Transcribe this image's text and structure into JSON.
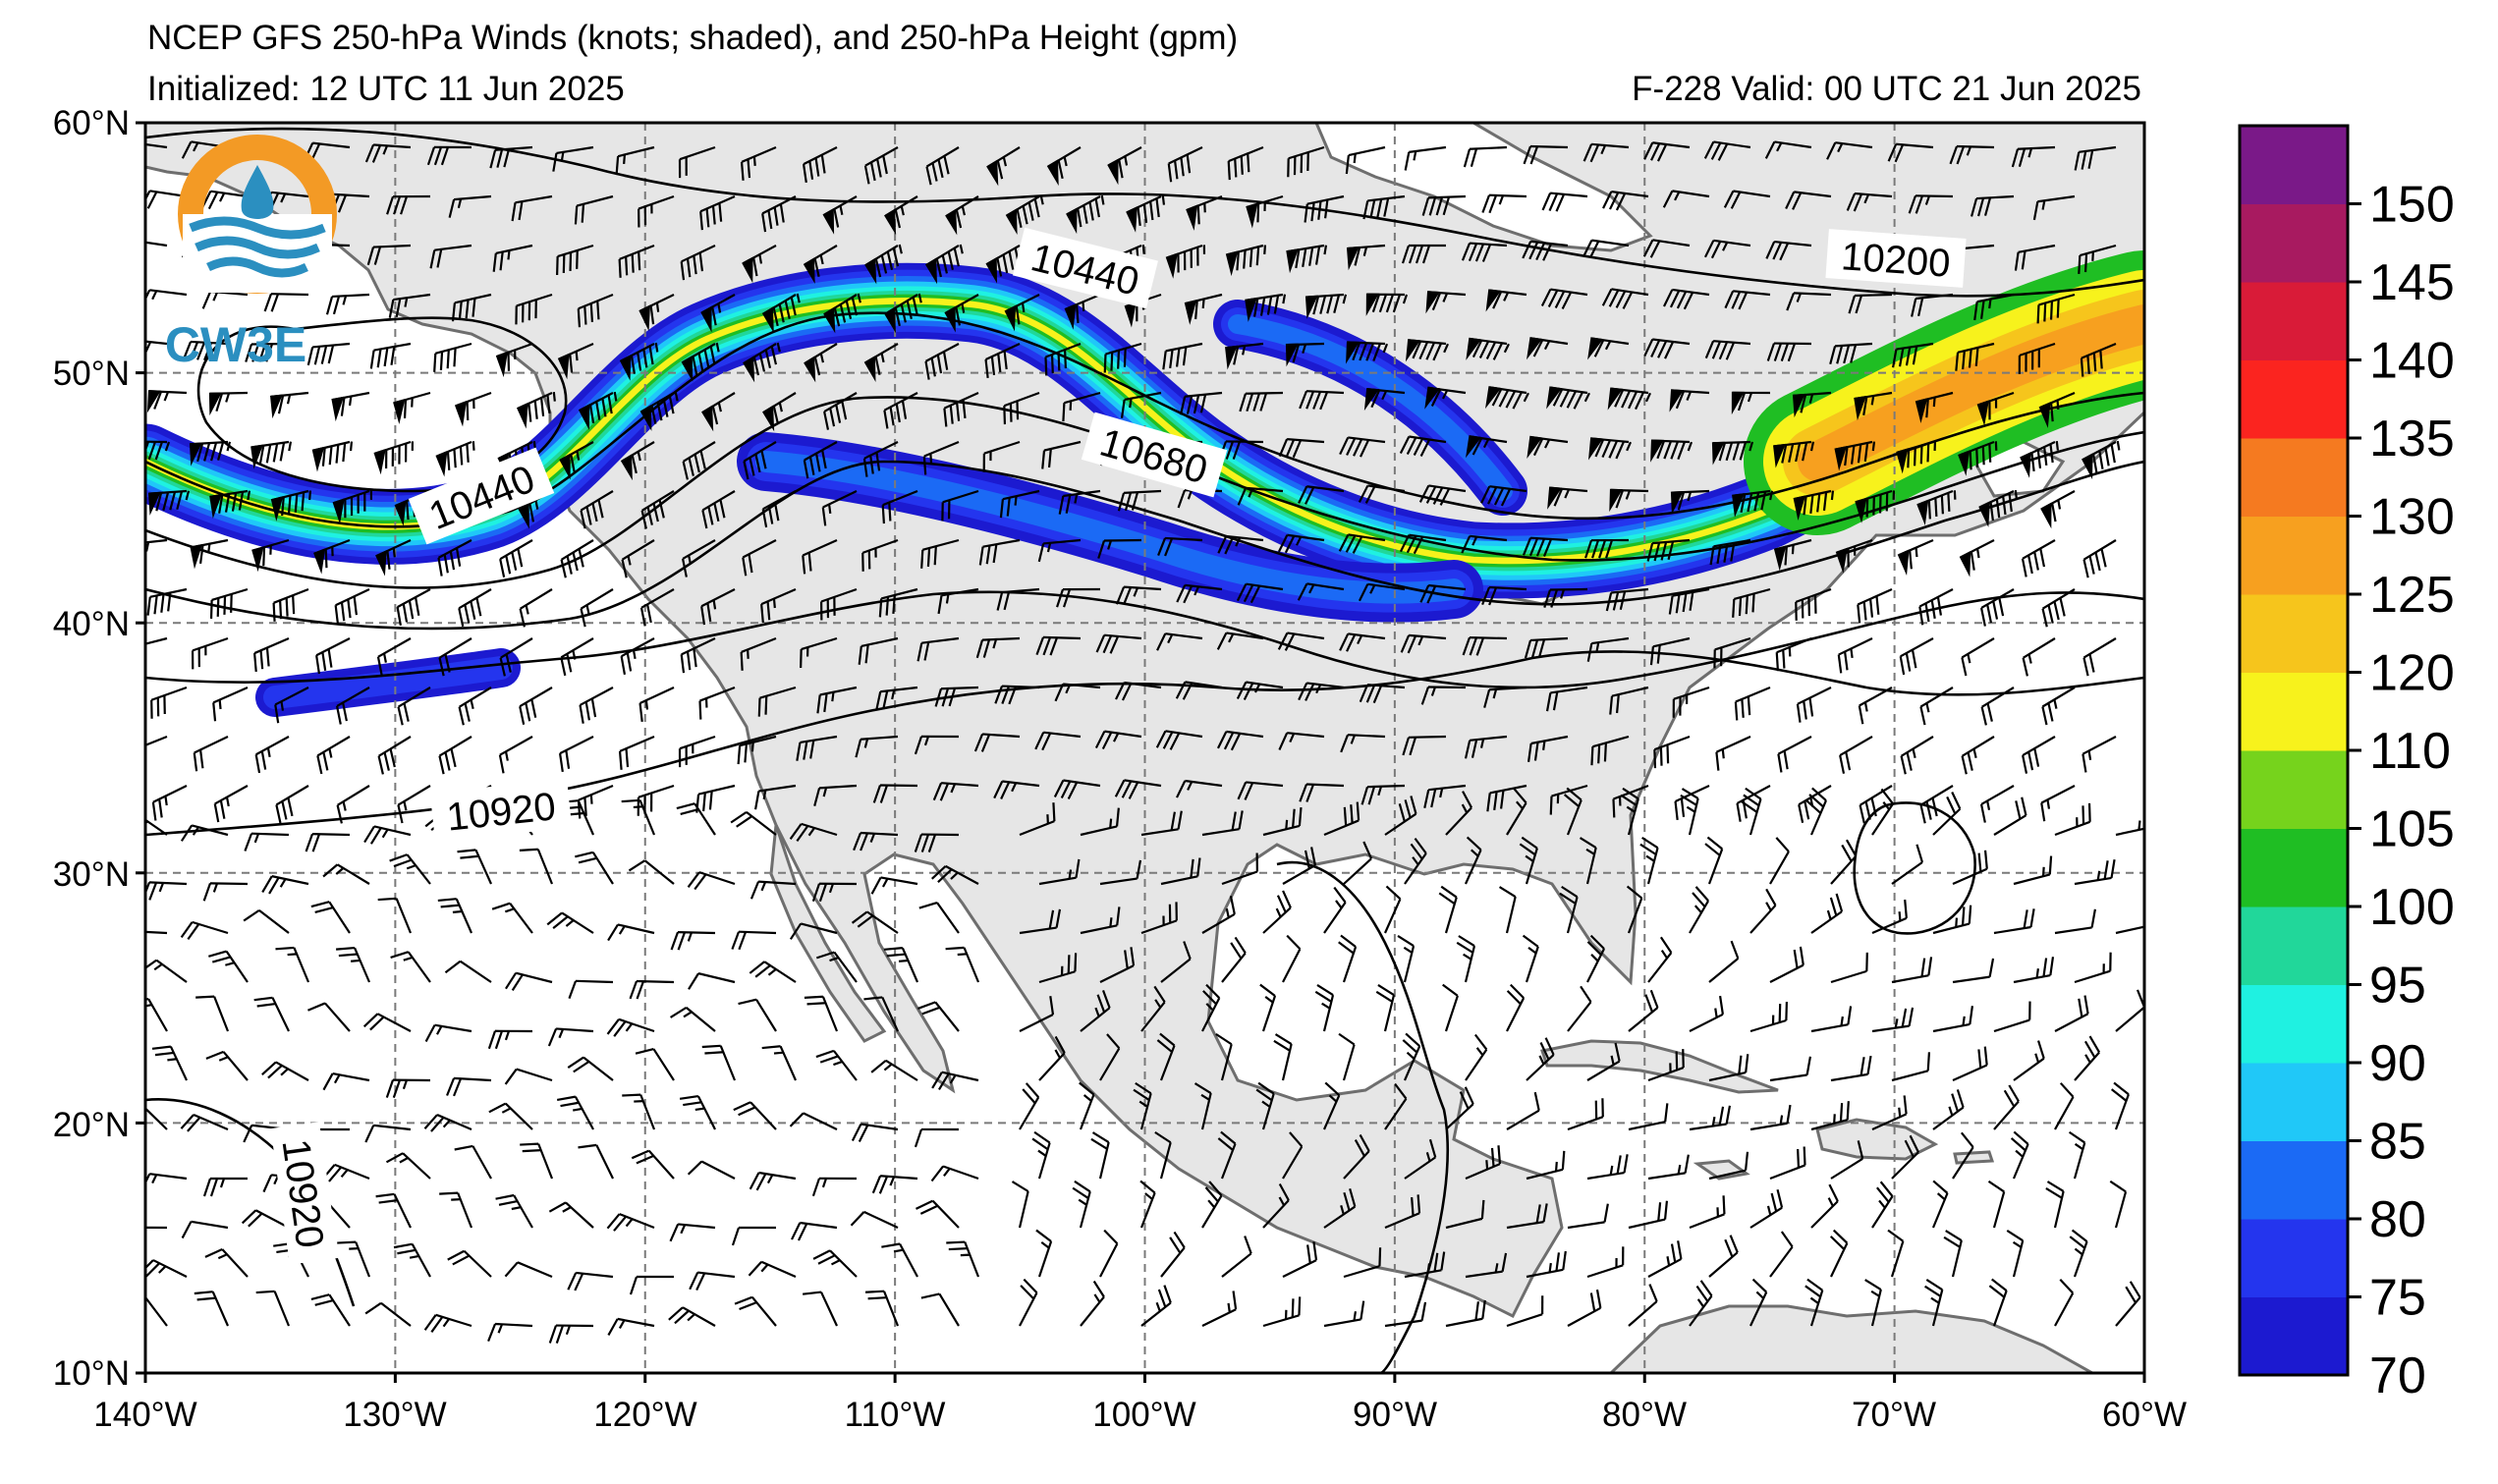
{
  "header": {
    "title": "NCEP GFS 250-hPa Winds (knots; shaded), and 250-hPa Height (gpm)",
    "initialized": "Initialized: 12 UTC 11 Jun 2025",
    "forecast": "F-228  Valid: 00 UTC 21 Jun 2025"
  },
  "logo": {
    "text": "CW3E",
    "ring_color": "#f39a25",
    "blue_color": "#2b8fc0"
  },
  "map": {
    "lon_range": [
      -140,
      -60
    ],
    "lat_range": [
      10,
      60
    ],
    "lat_ticks": [
      "60°N",
      "50°N",
      "40°N",
      "30°N",
      "20°N",
      "10°N"
    ],
    "lon_ticks": [
      "140°W",
      "130°W",
      "120°W",
      "110°W",
      "100°W",
      "90°W",
      "80°W",
      "70°W",
      "60°W"
    ],
    "land_color": "#e6e6e6",
    "contour_labels": [
      "10440",
      "10680",
      "10200",
      "10440",
      "10920",
      "10920"
    ]
  },
  "colorbar": {
    "labels": [
      "150",
      "145",
      "140",
      "135",
      "130",
      "125",
      "120",
      "110",
      "105",
      "100",
      "95",
      "90",
      "85",
      "80",
      "75",
      "70"
    ],
    "colors": [
      "#1c1ad0",
      "#2435ee",
      "#1b6af5",
      "#20c8f8",
      "#1ff1e1",
      "#21d79a",
      "#1fbe23",
      "#76d31c",
      "#f7f21c",
      "#f6c51c",
      "#f7a01f",
      "#f57a20",
      "#fb241f",
      "#d91b38",
      "#a81a60",
      "#7a1988"
    ]
  }
}
